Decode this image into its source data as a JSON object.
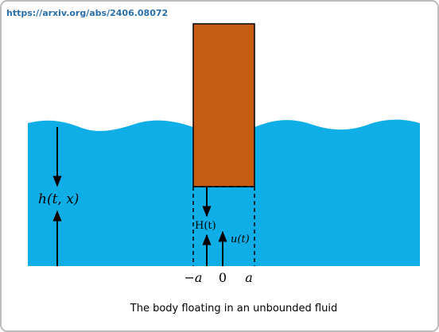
{
  "header": {
    "url": "https://arxiv.org/abs/2406.08072"
  },
  "labels": {
    "height": "h(t, x)",
    "draft": "H(t)",
    "velocity": "u(t)",
    "left_edge": "−a",
    "origin": "0",
    "right_edge": "a"
  },
  "caption": "The body floating in an unbounded fluid"
}
